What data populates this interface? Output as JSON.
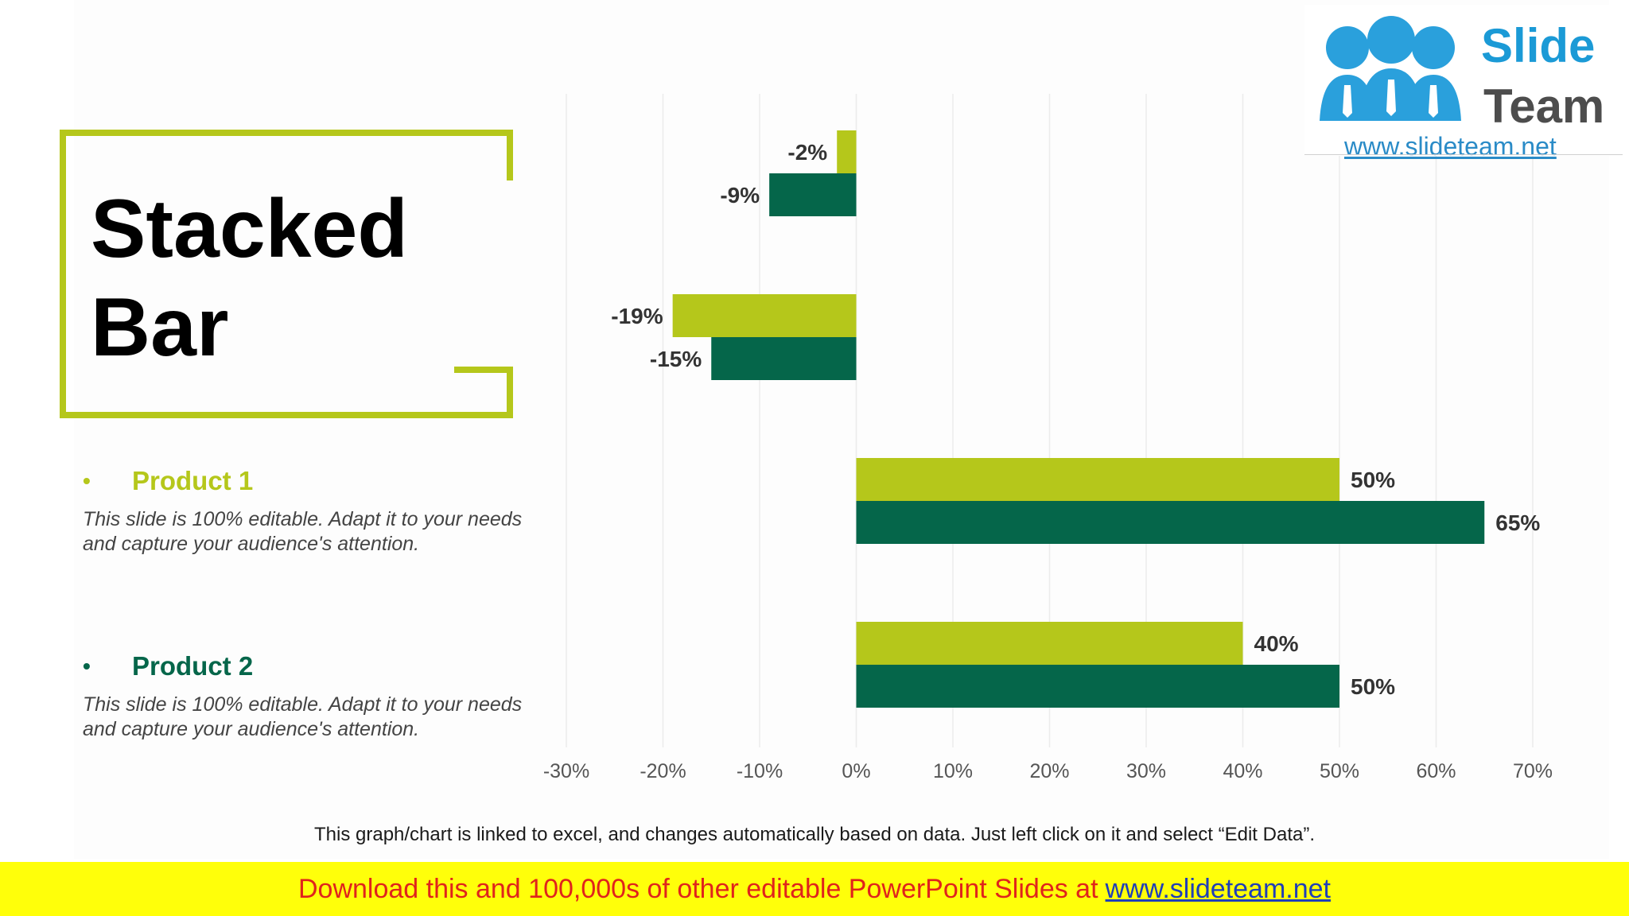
{
  "title": "Stacked\nBar",
  "legend": [
    {
      "label": "Product 1",
      "description": "This slide is 100% editable. Adapt it to your needs and capture your audience's attention.",
      "color": "#b5c71b"
    },
    {
      "label": "Product 2",
      "description": "This slide is 100% editable. Adapt it to your needs and capture your audience's attention.",
      "color": "#05664a"
    }
  ],
  "chart_data": {
    "type": "bar",
    "orientation": "horizontal",
    "categories": [
      "",
      "",
      "",
      ""
    ],
    "series": [
      {
        "name": "Product 1",
        "color": "#b5c71b",
        "values": [
          -2,
          -19,
          50,
          40
        ],
        "labels": [
          "-2%",
          "-19%",
          "50%",
          "40%"
        ]
      },
      {
        "name": "Product 2",
        "color": "#05664a",
        "values": [
          -9,
          -15,
          65,
          50
        ],
        "labels": [
          "-9%",
          "-15%",
          "65%",
          "50%"
        ]
      }
    ],
    "xlim": [
      -30,
      70
    ],
    "x_ticks": [
      "-30%",
      "-20%",
      "-10%",
      "0%",
      "10%",
      "20%",
      "30%",
      "40%",
      "50%",
      "60%",
      "70%"
    ],
    "grid": true
  },
  "footnote": "This graph/chart is linked to excel, and changes automatically based on data. Just left click on it and select “Edit Data”.",
  "banner": {
    "text": "Download this and 100,000s of other editable PowerPoint Slides at",
    "link": "www.slideteam.net"
  },
  "logo": {
    "word1": "Slide",
    "word2": "Team",
    "url": "www.slideteam.net",
    "color": "#1b9ad6"
  }
}
